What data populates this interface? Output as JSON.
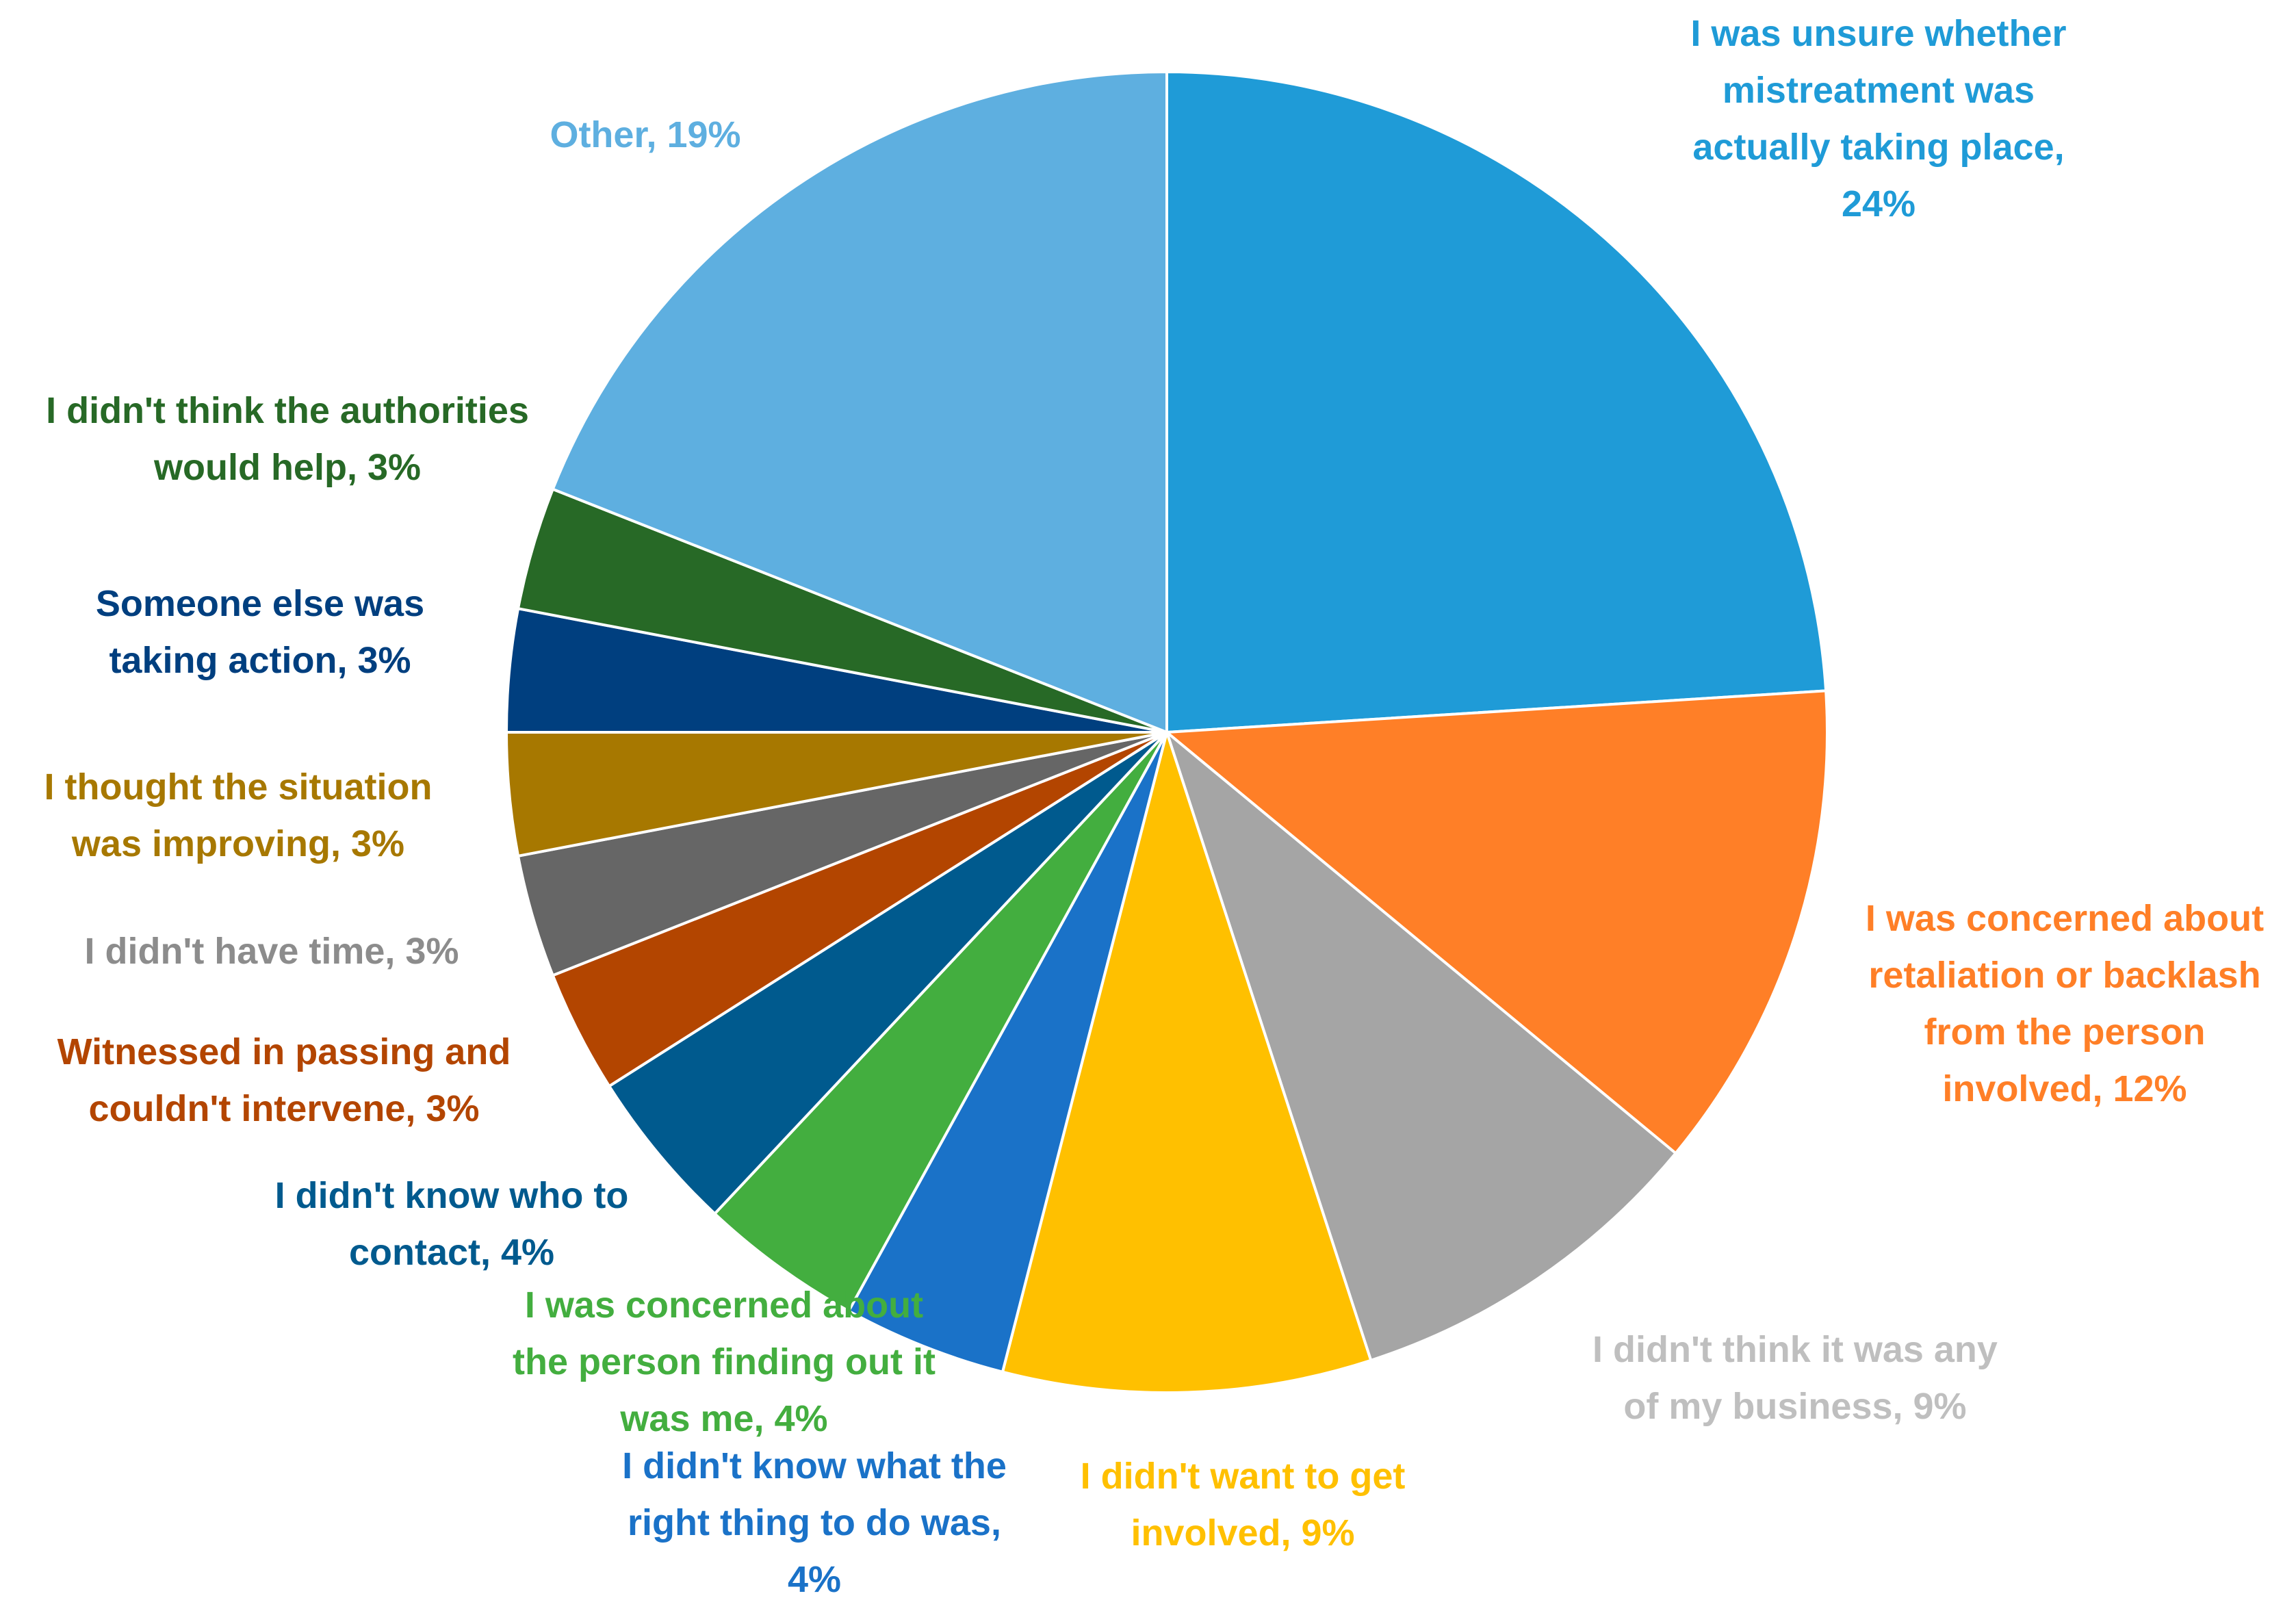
{
  "chart_data": {
    "type": "pie",
    "title": "",
    "slices": [
      {
        "label": "I was unsure whether mistreatment was actually taking place",
        "value": 24,
        "value_label": "24%",
        "color": "#1F9BD7"
      },
      {
        "label": "I was concerned about retaliation or backlash from the person involved",
        "value": 12,
        "value_label": "12%",
        "color": "#FF7F27"
      },
      {
        "label": "I didn't think it was any of my business",
        "value": 9,
        "value_label": "9%",
        "color": "#A5A5A5"
      },
      {
        "label": "I didn't want to get involved",
        "value": 9,
        "value_label": "9%",
        "color": "#FFC000"
      },
      {
        "label": "I didn't know what the right thing to do was",
        "value": 4,
        "value_label": "4%",
        "color": "#1A72C8"
      },
      {
        "label": "I was concerned about the person finding out it was me",
        "value": 4,
        "value_label": "4%",
        "color": "#43AE3F"
      },
      {
        "label": "I didn't know who to contact",
        "value": 4,
        "value_label": "4%",
        "color": "#005A8E"
      },
      {
        "label": "Witnessed in passing and couldn't intervene",
        "value": 3,
        "value_label": "3%",
        "color": "#B34500"
      },
      {
        "label": "I didn't have time",
        "value": 3,
        "value_label": "3%",
        "color": "#666666"
      },
      {
        "label": "I thought the situation was improving",
        "value": 3,
        "value_label": "3%",
        "color": "#A77800"
      },
      {
        "label": "Someone else was taking action",
        "value": 3,
        "value_label": "3%",
        "color": "#003F7F"
      },
      {
        "label": "I didn't think the authorities would help",
        "value": 3,
        "value_label": "3%",
        "color": "#276926"
      },
      {
        "label": "Other",
        "value": 19,
        "value_label": "19%",
        "color": "#5EAFE0"
      }
    ],
    "label_lines": [
      [
        "I was unsure whether",
        "mistreatment was",
        "actually taking place,",
        "24%"
      ],
      [
        "I was concerned about",
        "retaliation or backlash",
        "from the person",
        "involved, 12%"
      ],
      [
        "I didn't think it was any",
        "of my business, 9%"
      ],
      [
        "I didn't want to get",
        "involved, 9%"
      ],
      [
        "I didn't know what the",
        "right thing to do was,",
        "4%"
      ],
      [
        "I was concerned about",
        "the person finding out it",
        "was me, 4%"
      ],
      [
        "I didn't know who to",
        "contact, 4%"
      ],
      [
        "Witnessed in passing and",
        "couldn't intervene, 3%"
      ],
      [
        "I didn't have time, 3%"
      ],
      [
        "I thought the situation",
        "was improving, 3%"
      ],
      [
        "Someone else was",
        "taking action, 3%"
      ],
      [
        "I didn't think the authorities",
        "would help, 3%"
      ],
      [
        "Other, 19%"
      ]
    ],
    "label_colors": [
      "#1F9BD7",
      "#FF7F27",
      "#BFBFBF",
      "#FFC000",
      "#1A72C8",
      "#43AE3F",
      "#005A8E",
      "#B34500",
      "#8C8C8C",
      "#A77800",
      "#003F7F",
      "#276926",
      "#5EAFE0"
    ],
    "legend": "none"
  }
}
